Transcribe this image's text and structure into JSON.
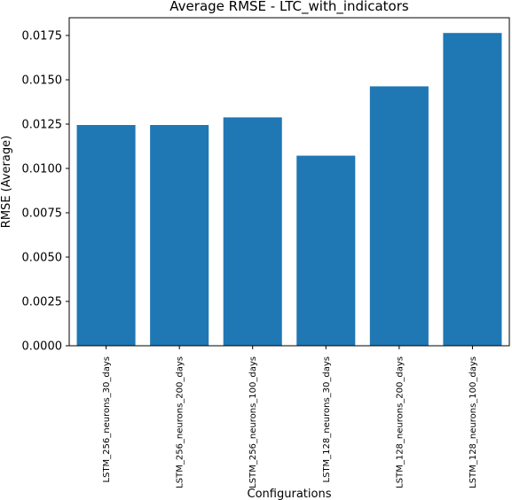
{
  "chart_data": {
    "type": "bar",
    "title": "Average RMSE - LTC_with_indicators",
    "xlabel": "Configurations",
    "ylabel": "RMSE (Average)",
    "categories": [
      "LSTM_256_neurons_30_days",
      "LSTM_256_neurons_200_days",
      "LSTM_256_neurons_100_days",
      "LSTM_128_neurons_30_days",
      "LSTM_128_neurons_200_days",
      "LSTM_128_neurons_100_days"
    ],
    "values": [
      0.01245,
      0.01245,
      0.01288,
      0.01072,
      0.01463,
      0.01764
    ],
    "ylim": [
      0,
      0.0185
    ],
    "yticks": [
      0.0,
      0.0025,
      0.005,
      0.0075,
      0.01,
      0.0125,
      0.015,
      0.0175
    ],
    "ytick_labels": [
      "0.0000",
      "0.0025",
      "0.0050",
      "0.0075",
      "0.0100",
      "0.0125",
      "0.0150",
      "0.0175"
    ],
    "bar_color": "#1f77b4",
    "grid": false
  }
}
